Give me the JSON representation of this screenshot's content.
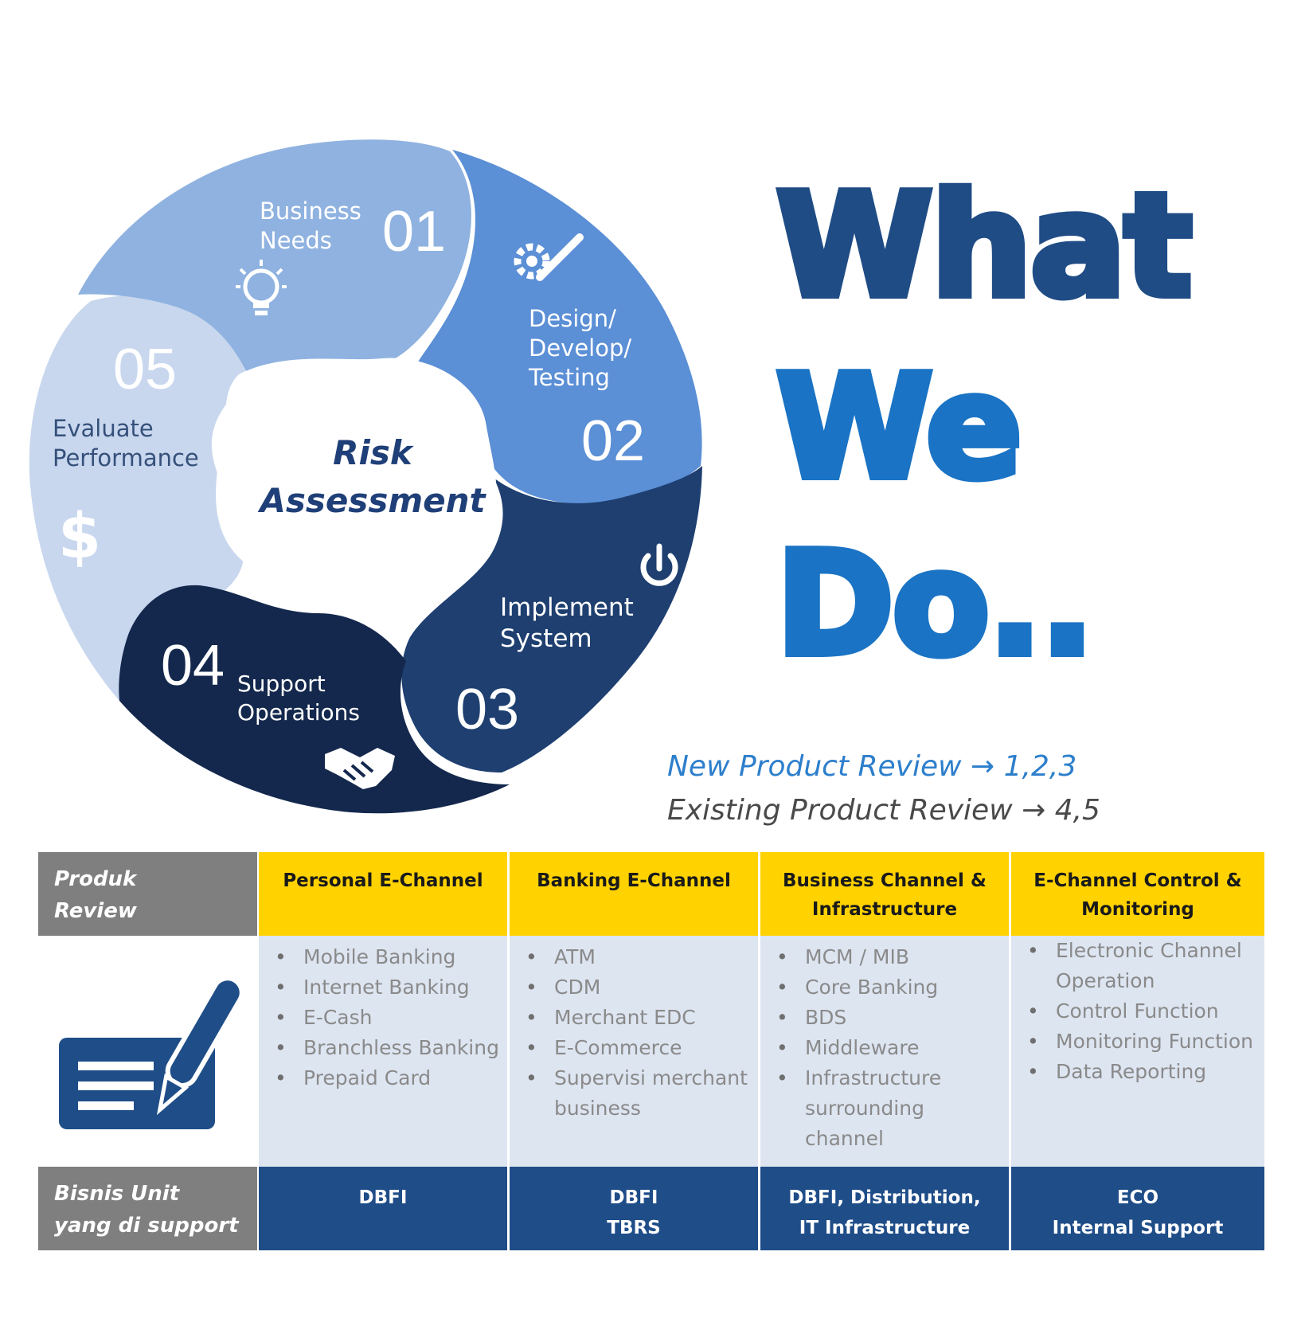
{
  "diagram": {
    "center": {
      "line1": "Risk",
      "line2": "Assessment"
    },
    "steps": [
      {
        "number": "01",
        "label_lines": [
          "Business",
          "Needs"
        ],
        "icon": "lightbulb-icon",
        "color": "#8fb2e0"
      },
      {
        "number": "02",
        "label_lines": [
          "Design/",
          "Develop/",
          "Testing"
        ],
        "icon": "gear-pencil-icon",
        "color": "#5b8fd6"
      },
      {
        "number": "03",
        "label_lines": [
          "Implement",
          "System"
        ],
        "icon": "power-icon",
        "color": "#1e3f70"
      },
      {
        "number": "04",
        "label_lines": [
          "Support",
          "Operations"
        ],
        "icon": "handshake-icon",
        "color": "#14284d"
      },
      {
        "number": "05",
        "label_lines": [
          "Evaluate",
          "Performance"
        ],
        "icon": "dollar-icon",
        "color": "#c8d7ee"
      }
    ]
  },
  "headline": {
    "line1": "What",
    "line2": "We",
    "line3": "Do.."
  },
  "review": {
    "new": "New Product Review → 1,2,3",
    "existing": "Existing Product Review → 4,5"
  },
  "table": {
    "row1_label": [
      "Produk",
      "Review"
    ],
    "row3_label": [
      "Bisnis Unit",
      "yang di support"
    ],
    "icon": "document-pen-icon",
    "columns": [
      {
        "header": [
          "Personal E-Channel"
        ],
        "items": [
          "Mobile Banking",
          "Internet Banking",
          "E-Cash",
          "Branchless Banking",
          "Prepaid Card"
        ],
        "units": [
          "DBFI"
        ]
      },
      {
        "header": [
          "Banking E-Channel"
        ],
        "items": [
          "ATM",
          "CDM",
          "Merchant EDC",
          "E-Commerce",
          "Supervisi merchant business"
        ],
        "units": [
          "DBFI",
          "TBRS"
        ]
      },
      {
        "header": [
          "Business Channel &",
          "Infrastructure"
        ],
        "items": [
          "MCM / MIB",
          "Core Banking",
          "BDS",
          "Middleware",
          "Infrastructure surrounding channel"
        ],
        "units": [
          "DBFI, Distribution,",
          "IT Infrastructure"
        ]
      },
      {
        "header": [
          "E-Channel Control &",
          "Monitoring"
        ],
        "items": [
          "Electronic Channel Operation",
          "Control Function",
          "Monitoring Function",
          "Data Reporting"
        ],
        "units": [
          "ECO",
          "Internal Support"
        ]
      }
    ]
  }
}
